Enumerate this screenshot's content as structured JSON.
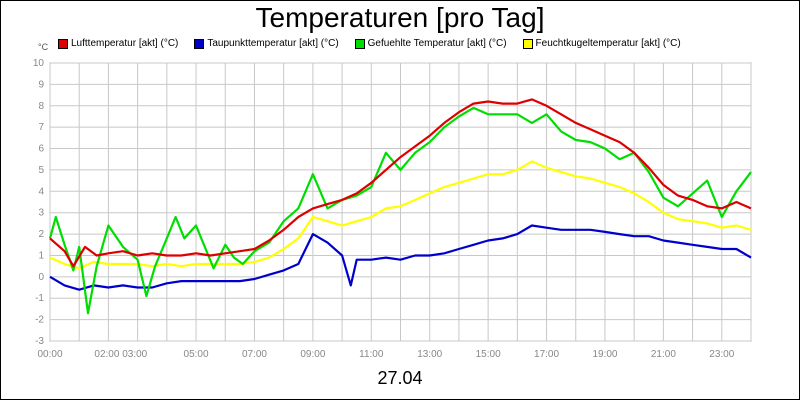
{
  "chart_data": {
    "type": "line",
    "title": "Temperaturen [pro Tag]",
    "ylabel": "°C",
    "date": "27.04",
    "ylim": [
      -3,
      10
    ],
    "xlim": [
      0,
      24
    ],
    "grid": true,
    "legend_position": "top",
    "y_ticks": [
      "-3",
      "-2",
      "-1",
      "0",
      "1",
      "2",
      "3",
      "4",
      "5",
      "6",
      "7",
      "8",
      "9",
      "10"
    ],
    "x_ticks": [
      {
        "h": 0,
        "label": "00:00"
      },
      {
        "h": 2,
        "label": "02:00 03:00"
      },
      {
        "h": 5,
        "label": "05:00"
      },
      {
        "h": 7,
        "label": "07:00"
      },
      {
        "h": 9,
        "label": "09:00"
      },
      {
        "h": 11,
        "label": "11:00"
      },
      {
        "h": 13,
        "label": "13:00"
      },
      {
        "h": 15,
        "label": "15:00"
      },
      {
        "h": 17,
        "label": "17:00"
      },
      {
        "h": 19,
        "label": "19:00"
      },
      {
        "h": 21,
        "label": "21:00"
      },
      {
        "h": 23,
        "label": "23:00"
      }
    ],
    "series": [
      {
        "name": "Lufttemperatur [akt] (°C)",
        "color": "#dd0000",
        "points": [
          [
            0,
            1.8
          ],
          [
            0.5,
            1.2
          ],
          [
            0.8,
            0.5
          ],
          [
            1.2,
            1.4
          ],
          [
            1.6,
            1.0
          ],
          [
            2.0,
            1.1
          ],
          [
            2.5,
            1.2
          ],
          [
            3.0,
            1.0
          ],
          [
            3.5,
            1.1
          ],
          [
            4.0,
            1.0
          ],
          [
            4.5,
            1.0
          ],
          [
            5.0,
            1.1
          ],
          [
            5.5,
            1.0
          ],
          [
            6.0,
            1.1
          ],
          [
            6.5,
            1.2
          ],
          [
            7.0,
            1.3
          ],
          [
            7.5,
            1.7
          ],
          [
            8.0,
            2.2
          ],
          [
            8.5,
            2.8
          ],
          [
            9.0,
            3.2
          ],
          [
            9.5,
            3.4
          ],
          [
            10.0,
            3.6
          ],
          [
            10.5,
            3.9
          ],
          [
            11.0,
            4.4
          ],
          [
            11.5,
            5.0
          ],
          [
            12.0,
            5.6
          ],
          [
            12.5,
            6.1
          ],
          [
            13.0,
            6.6
          ],
          [
            13.5,
            7.2
          ],
          [
            14.0,
            7.7
          ],
          [
            14.5,
            8.1
          ],
          [
            15.0,
            8.2
          ],
          [
            15.5,
            8.1
          ],
          [
            16.0,
            8.1
          ],
          [
            16.5,
            8.3
          ],
          [
            17.0,
            8.0
          ],
          [
            17.5,
            7.6
          ],
          [
            18.0,
            7.2
          ],
          [
            18.5,
            6.9
          ],
          [
            19.0,
            6.6
          ],
          [
            19.5,
            6.3
          ],
          [
            20.0,
            5.8
          ],
          [
            20.5,
            5.1
          ],
          [
            21.0,
            4.3
          ],
          [
            21.5,
            3.8
          ],
          [
            22.0,
            3.6
          ],
          [
            22.5,
            3.3
          ],
          [
            23.0,
            3.2
          ],
          [
            23.5,
            3.5
          ],
          [
            24.0,
            3.2
          ]
        ]
      },
      {
        "name": "Taupunkttemperatur [akt] (°C)",
        "color": "#0000cc",
        "points": [
          [
            0,
            0.0
          ],
          [
            0.5,
            -0.4
          ],
          [
            1.0,
            -0.6
          ],
          [
            1.5,
            -0.4
          ],
          [
            2.0,
            -0.5
          ],
          [
            2.5,
            -0.4
          ],
          [
            3.0,
            -0.5
          ],
          [
            3.5,
            -0.5
          ],
          [
            4.0,
            -0.3
          ],
          [
            4.5,
            -0.2
          ],
          [
            5.0,
            -0.2
          ],
          [
            5.5,
            -0.2
          ],
          [
            6.0,
            -0.2
          ],
          [
            6.5,
            -0.2
          ],
          [
            7.0,
            -0.1
          ],
          [
            7.5,
            0.1
          ],
          [
            8.0,
            0.3
          ],
          [
            8.5,
            0.6
          ],
          [
            9.0,
            2.0
          ],
          [
            9.5,
            1.6
          ],
          [
            10.0,
            1.0
          ],
          [
            10.3,
            -0.4
          ],
          [
            10.5,
            0.8
          ],
          [
            11.0,
            0.8
          ],
          [
            11.5,
            0.9
          ],
          [
            12.0,
            0.8
          ],
          [
            12.5,
            1.0
          ],
          [
            13.0,
            1.0
          ],
          [
            13.5,
            1.1
          ],
          [
            14.0,
            1.3
          ],
          [
            14.5,
            1.5
          ],
          [
            15.0,
            1.7
          ],
          [
            15.5,
            1.8
          ],
          [
            16.0,
            2.0
          ],
          [
            16.5,
            2.4
          ],
          [
            17.0,
            2.3
          ],
          [
            17.5,
            2.2
          ],
          [
            18.0,
            2.2
          ],
          [
            18.5,
            2.2
          ],
          [
            19.0,
            2.1
          ],
          [
            19.5,
            2.0
          ],
          [
            20.0,
            1.9
          ],
          [
            20.5,
            1.9
          ],
          [
            21.0,
            1.7
          ],
          [
            21.5,
            1.6
          ],
          [
            22.0,
            1.5
          ],
          [
            22.5,
            1.4
          ],
          [
            23.0,
            1.3
          ],
          [
            23.5,
            1.3
          ],
          [
            24.0,
            0.9
          ]
        ]
      },
      {
        "name": "Gefuehlte Temperatur [akt] (°C)",
        "color": "#00dd00",
        "points": [
          [
            0,
            1.8
          ],
          [
            0.2,
            2.8
          ],
          [
            0.5,
            1.5
          ],
          [
            0.8,
            0.3
          ],
          [
            1.0,
            1.4
          ],
          [
            1.3,
            -1.7
          ],
          [
            1.6,
            0.5
          ],
          [
            2.0,
            2.4
          ],
          [
            2.5,
            1.4
          ],
          [
            3.0,
            0.8
          ],
          [
            3.3,
            -0.9
          ],
          [
            3.6,
            0.5
          ],
          [
            4.0,
            1.8
          ],
          [
            4.3,
            2.8
          ],
          [
            4.6,
            1.8
          ],
          [
            5.0,
            2.4
          ],
          [
            5.3,
            1.4
          ],
          [
            5.6,
            0.4
          ],
          [
            6.0,
            1.5
          ],
          [
            6.3,
            0.9
          ],
          [
            6.6,
            0.6
          ],
          [
            7.0,
            1.2
          ],
          [
            7.5,
            1.6
          ],
          [
            8.0,
            2.6
          ],
          [
            8.5,
            3.2
          ],
          [
            9.0,
            4.8
          ],
          [
            9.5,
            3.2
          ],
          [
            10.0,
            3.6
          ],
          [
            10.5,
            3.8
          ],
          [
            11.0,
            4.2
          ],
          [
            11.5,
            5.8
          ],
          [
            12.0,
            5.0
          ],
          [
            12.5,
            5.8
          ],
          [
            13.0,
            6.3
          ],
          [
            13.5,
            7.0
          ],
          [
            14.0,
            7.5
          ],
          [
            14.5,
            7.9
          ],
          [
            15.0,
            7.6
          ],
          [
            15.5,
            7.6
          ],
          [
            16.0,
            7.6
          ],
          [
            16.5,
            7.2
          ],
          [
            17.0,
            7.6
          ],
          [
            17.5,
            6.8
          ],
          [
            18.0,
            6.4
          ],
          [
            18.5,
            6.3
          ],
          [
            19.0,
            6.0
          ],
          [
            19.5,
            5.5
          ],
          [
            20.0,
            5.8
          ],
          [
            20.5,
            4.9
          ],
          [
            21.0,
            3.7
          ],
          [
            21.5,
            3.3
          ],
          [
            22.0,
            3.9
          ],
          [
            22.5,
            4.5
          ],
          [
            23.0,
            2.8
          ],
          [
            23.5,
            4.0
          ],
          [
            24.0,
            4.9
          ]
        ]
      },
      {
        "name": "Feuchtkugeltemperatur [akt] (°C)",
        "color": "#ffff00",
        "points": [
          [
            0,
            0.9
          ],
          [
            0.5,
            0.6
          ],
          [
            1.0,
            0.4
          ],
          [
            1.5,
            0.7
          ],
          [
            2.0,
            0.6
          ],
          [
            2.5,
            0.6
          ],
          [
            3.0,
            0.6
          ],
          [
            3.5,
            0.5
          ],
          [
            4.0,
            0.6
          ],
          [
            4.5,
            0.5
          ],
          [
            5.0,
            0.6
          ],
          [
            5.5,
            0.6
          ],
          [
            6.0,
            0.6
          ],
          [
            6.5,
            0.6
          ],
          [
            7.0,
            0.7
          ],
          [
            7.5,
            0.9
          ],
          [
            8.0,
            1.3
          ],
          [
            8.5,
            1.8
          ],
          [
            9.0,
            2.8
          ],
          [
            9.5,
            2.6
          ],
          [
            10.0,
            2.4
          ],
          [
            10.5,
            2.6
          ],
          [
            11.0,
            2.8
          ],
          [
            11.5,
            3.2
          ],
          [
            12.0,
            3.3
          ],
          [
            12.5,
            3.6
          ],
          [
            13.0,
            3.9
          ],
          [
            13.5,
            4.2
          ],
          [
            14.0,
            4.4
          ],
          [
            14.5,
            4.6
          ],
          [
            15.0,
            4.8
          ],
          [
            15.5,
            4.8
          ],
          [
            16.0,
            5.0
          ],
          [
            16.5,
            5.4
          ],
          [
            17.0,
            5.1
          ],
          [
            17.5,
            4.9
          ],
          [
            18.0,
            4.7
          ],
          [
            18.5,
            4.6
          ],
          [
            19.0,
            4.4
          ],
          [
            19.5,
            4.2
          ],
          [
            20.0,
            3.9
          ],
          [
            20.5,
            3.5
          ],
          [
            21.0,
            3.0
          ],
          [
            21.5,
            2.7
          ],
          [
            22.0,
            2.6
          ],
          [
            22.5,
            2.5
          ],
          [
            23.0,
            2.3
          ],
          [
            23.5,
            2.4
          ],
          [
            24.0,
            2.2
          ]
        ]
      }
    ]
  }
}
